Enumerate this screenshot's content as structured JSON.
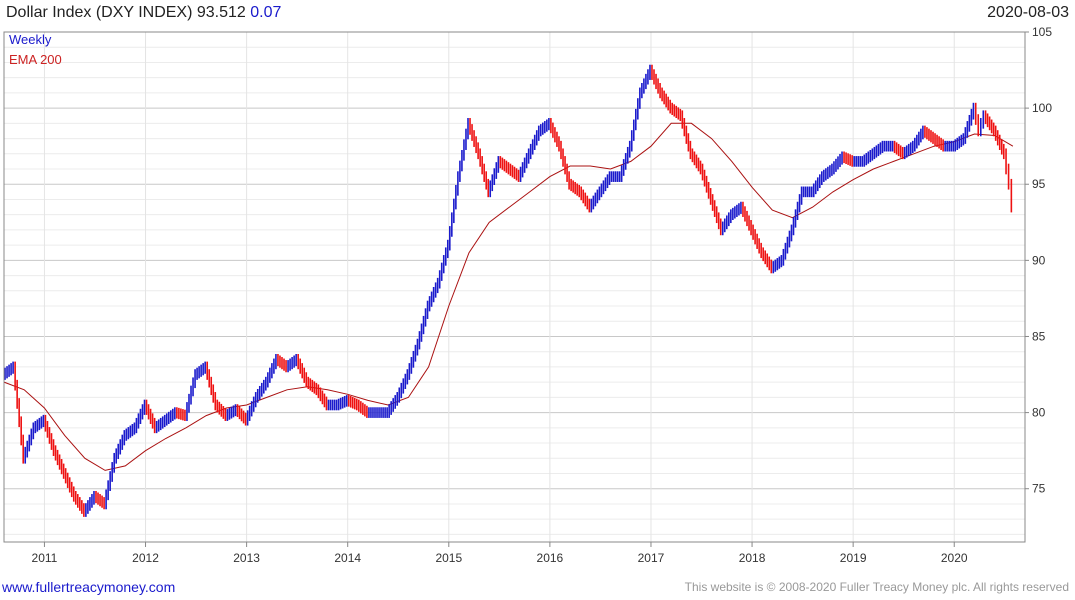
{
  "header": {
    "title": "Dollar Index (DXY INDEX) 93.512",
    "change": "0.07",
    "date": "2020-08-03"
  },
  "legend": {
    "weekly": "Weekly",
    "ema": "EMA 200"
  },
  "footer": {
    "site": "www.fullertreacymoney.com",
    "copyright": "This website is © 2008-2020 Fuller Treacy Money plc. All rights reserved"
  },
  "colors": {
    "up": "#1a1acc",
    "down": "#ee1111",
    "ema": "#aa1111",
    "grid": "#dddddd",
    "frame": "#888888"
  },
  "chart_data": {
    "type": "line",
    "title": "Dollar Index (DXY INDEX) 93.512 0.07",
    "x_tick_labels": [
      "2011",
      "2012",
      "2013",
      "2014",
      "2015",
      "2016",
      "2017",
      "2018",
      "2019",
      "2020"
    ],
    "y_tick_labels": [
      "75",
      "80",
      "85",
      "90",
      "95",
      "100",
      "105"
    ],
    "xlim": [
      2010.6,
      2020.7
    ],
    "ylim": [
      71.5,
      105
    ],
    "y_axis_side": "right",
    "grid": true,
    "legend_position": "top-left",
    "series": [
      {
        "name": "Weekly",
        "x": [
          2010.6,
          2010.7,
          2010.8,
          2010.9,
          2011.0,
          2011.1,
          2011.2,
          2011.3,
          2011.4,
          2011.5,
          2011.6,
          2011.7,
          2011.8,
          2011.9,
          2012.0,
          2012.1,
          2012.2,
          2012.3,
          2012.4,
          2012.5,
          2012.6,
          2012.7,
          2012.8,
          2012.9,
          2013.0,
          2013.1,
          2013.2,
          2013.3,
          2013.4,
          2013.5,
          2013.6,
          2013.7,
          2013.8,
          2013.9,
          2014.0,
          2014.1,
          2014.2,
          2014.3,
          2014.4,
          2014.5,
          2014.6,
          2014.7,
          2014.8,
          2014.9,
          2015.0,
          2015.1,
          2015.2,
          2015.3,
          2015.4,
          2015.5,
          2015.6,
          2015.7,
          2015.8,
          2015.9,
          2016.0,
          2016.1,
          2016.2,
          2016.3,
          2016.4,
          2016.5,
          2016.6,
          2016.7,
          2016.8,
          2016.9,
          2017.0,
          2017.1,
          2017.2,
          2017.3,
          2017.4,
          2017.5,
          2017.6,
          2017.7,
          2017.8,
          2017.9,
          2018.0,
          2018.1,
          2018.2,
          2018.3,
          2018.4,
          2018.5,
          2018.6,
          2018.7,
          2018.8,
          2018.9,
          2019.0,
          2019.1,
          2019.2,
          2019.3,
          2019.4,
          2019.5,
          2019.6,
          2019.7,
          2019.8,
          2019.9,
          2020.0,
          2020.1,
          2020.2,
          2020.25,
          2020.3,
          2020.4,
          2020.5,
          2020.55,
          2020.58
        ],
        "values": [
          82.5,
          83.0,
          77.0,
          79.0,
          79.5,
          77.5,
          76.0,
          74.5,
          73.5,
          74.5,
          74.0,
          77.0,
          78.5,
          79.0,
          80.5,
          79.0,
          79.5,
          80.0,
          79.8,
          82.5,
          83.0,
          80.5,
          79.8,
          80.2,
          79.5,
          81.0,
          82.0,
          83.5,
          83.0,
          83.5,
          82.0,
          81.5,
          80.5,
          80.5,
          80.8,
          80.5,
          80.0,
          80.0,
          80.0,
          81.0,
          82.5,
          84.5,
          87.0,
          88.5,
          91.0,
          95.5,
          99.0,
          97.0,
          94.5,
          96.5,
          96.0,
          95.5,
          97.0,
          98.5,
          99.0,
          97.5,
          95.0,
          94.5,
          93.5,
          94.5,
          95.5,
          95.5,
          97.5,
          101.0,
          102.5,
          101.0,
          100.0,
          99.5,
          97.0,
          96.0,
          94.0,
          92.0,
          93.0,
          93.5,
          92.0,
          90.5,
          89.5,
          90.0,
          92.0,
          94.5,
          94.5,
          95.5,
          96.0,
          96.8,
          96.5,
          96.5,
          97.0,
          97.5,
          97.5,
          97.0,
          97.5,
          98.5,
          98.0,
          97.5,
          97.5,
          98.0,
          100.0,
          98.5,
          99.5,
          98.5,
          97.0,
          95.0,
          93.5
        ]
      },
      {
        "name": "EMA 200",
        "x": [
          2010.6,
          2010.8,
          2011.0,
          2011.2,
          2011.4,
          2011.6,
          2011.8,
          2012.0,
          2012.2,
          2012.4,
          2012.6,
          2012.8,
          2013.0,
          2013.2,
          2013.4,
          2013.6,
          2013.8,
          2014.0,
          2014.2,
          2014.4,
          2014.6,
          2014.8,
          2015.0,
          2015.2,
          2015.4,
          2015.6,
          2015.8,
          2016.0,
          2016.2,
          2016.4,
          2016.6,
          2016.8,
          2017.0,
          2017.2,
          2017.4,
          2017.6,
          2017.8,
          2018.0,
          2018.2,
          2018.4,
          2018.6,
          2018.8,
          2019.0,
          2019.2,
          2019.4,
          2019.6,
          2019.8,
          2020.0,
          2020.2,
          2020.4,
          2020.58
        ],
        "values": [
          82.0,
          81.5,
          80.3,
          78.5,
          77.0,
          76.2,
          76.5,
          77.5,
          78.3,
          79.0,
          79.8,
          80.3,
          80.5,
          81.0,
          81.5,
          81.7,
          81.5,
          81.2,
          80.8,
          80.5,
          81.0,
          83.0,
          87.0,
          90.5,
          92.5,
          93.5,
          94.5,
          95.5,
          96.2,
          96.2,
          96.0,
          96.5,
          97.5,
          99.0,
          99.0,
          98.0,
          96.5,
          94.8,
          93.3,
          92.8,
          93.5,
          94.5,
          95.3,
          96.0,
          96.5,
          97.0,
          97.5,
          97.8,
          98.3,
          98.2,
          97.5
        ]
      }
    ]
  }
}
